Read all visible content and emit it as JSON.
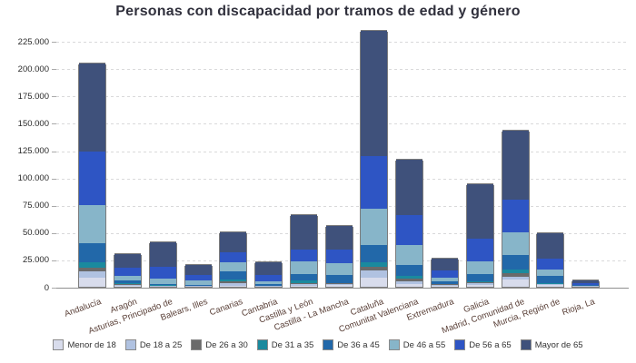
{
  "chart": {
    "title": "Personas con discapacidad por tramos de edad y género"
  },
  "y_axis": {
    "tick_labels": [
      "0",
      "25.000",
      "50.000",
      "75.000",
      "100.000",
      "125.000",
      "150.000",
      "175.000",
      "200.000",
      "225.000"
    ],
    "tick_values": [
      0,
      25000,
      50000,
      75000,
      100000,
      125000,
      150000,
      175000,
      200000,
      225000
    ]
  },
  "colors": {
    "background": "#ffffff",
    "gridline": "#d9d9da",
    "axis_line": "#8f8f8f",
    "bar_border": "#7c7c7c",
    "title_text": "#30303c",
    "x_label_text": "#5a4038",
    "y_label_text": "#2a2a2a"
  },
  "chart_data": {
    "type": "bar",
    "stacked": true,
    "title": "Personas con discapacidad por tramos de edad y género",
    "xlabel": "",
    "ylabel": "",
    "ylim": [
      0,
      237500
    ],
    "grid": true,
    "legend_position": "bottom",
    "categories": [
      "Andalucía",
      "Aragón",
      "Asturias, Principado de",
      "Balears, Illes",
      "Canarias",
      "Cantabria",
      "Castilla y León",
      "Castilla - La Mancha",
      "Cataluña",
      "Comunitat Valenciana",
      "Extremadura",
      "Galicia",
      "Madrid, Comunidad de",
      "Murcia, Región de",
      "Rioja, La"
    ],
    "series": [
      {
        "name": "Menor de 18",
        "color": "#d8dcec",
        "values": [
          8400,
          1000,
          300,
          300,
          800,
          350,
          900,
          1300,
          8400,
          2100,
          1000,
          1800,
          6800,
          1300,
          300
        ]
      },
      {
        "name": "De 18 a 25",
        "color": "#b0c2e1",
        "values": [
          5500,
          800,
          300,
          300,
          2200,
          350,
          1200,
          1100,
          6600,
          2700,
          800,
          1500,
          2200,
          1100,
          250
        ]
      },
      {
        "name": "De 26 a 30",
        "color": "#6a6a6a",
        "values": [
          3900,
          700,
          300,
          200,
          1900,
          250,
          1400,
          600,
          3600,
          2900,
          500,
          800,
          3300,
          500,
          150
        ]
      },
      {
        "name": "De 31 a 35",
        "color": "#1a8a9e",
        "values": [
          4400,
          900,
          400,
          200,
          2000,
          250,
          2200,
          500,
          4100,
          1900,
          400,
          700,
          3600,
          500,
          150
        ]
      },
      {
        "name": "De 36 a 45",
        "color": "#2268a9",
        "values": [
          18000,
          2500,
          1500,
          800,
          7100,
          900,
          6100,
          6900,
          15700,
          10200,
          2200,
          7000,
          12900,
          6400,
          500
        ]
      },
      {
        "name": "De 46 a 55",
        "color": "#87b5c9",
        "values": [
          34800,
          4400,
          5000,
          4100,
          8300,
          2700,
          11600,
          11000,
          33100,
          18200,
          3600,
          11600,
          21000,
          6400,
          600
        ]
      },
      {
        "name": "De 56 a 65",
        "color": "#2e55c4",
        "values": [
          48800,
          6900,
          10200,
          5000,
          8900,
          6400,
          10400,
          12400,
          47800,
          27700,
          6600,
          20700,
          30300,
          9400,
          1400
        ]
      },
      {
        "name": "Mayor de 65",
        "color": "#3f517b",
        "values": [
          80300,
          13000,
          22400,
          9400,
          18800,
          11000,
          31800,
          22100,
          115300,
          51000,
          10400,
          49900,
          62700,
          23400,
          2500
        ]
      }
    ]
  }
}
